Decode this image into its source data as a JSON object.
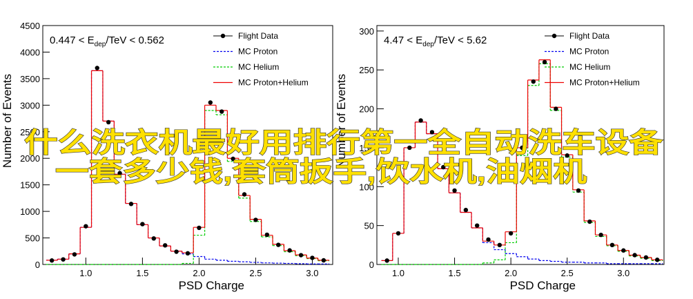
{
  "chart_data": [
    {
      "type": "histogram",
      "title_parts": [
        "0.447 < E",
        "dep",
        "/TeV < 0.562"
      ],
      "x_label": "PSD Charge",
      "y_label": "Number of Events",
      "xlim": [
        0.62,
        3.18
      ],
      "ylim": [
        0,
        4500
      ],
      "xticks": [
        {
          "value": 1,
          "label": "1.0"
        },
        1.5,
        {
          "value": 2,
          "label": "2.0"
        },
        2.5,
        {
          "value": 3,
          "label": "3.0"
        }
      ],
      "yticks": [
        0,
        500,
        1000,
        1500,
        2000,
        2500,
        3000,
        3500,
        4000,
        4500
      ],
      "bins": [
        0.65,
        0.75,
        0.85,
        0.95,
        1.05,
        1.15,
        1.25,
        1.35,
        1.45,
        1.55,
        1.65,
        1.75,
        1.85,
        1.95,
        2.05,
        2.15,
        2.25,
        2.35,
        2.45,
        2.55,
        2.65,
        2.75,
        2.85,
        2.95,
        3.05,
        3.15
      ],
      "series": [
        {
          "name": "Flight Data",
          "color": "#000000",
          "style": "markers",
          "values": [
            75,
            95,
            190,
            720,
            3700,
            2680,
            1720,
            1140,
            760,
            490,
            360,
            240,
            210,
            690,
            3050,
            2880,
            1990,
            1320,
            840,
            560,
            370,
            265,
            175,
            125,
            78
          ]
        },
        {
          "name": "MC Proton",
          "color": "#0000ee",
          "style": "dashed",
          "values": [
            80,
            100,
            200,
            700,
            3650,
            2700,
            1700,
            1150,
            750,
            500,
            350,
            250,
            200,
            150,
            100,
            80,
            60,
            50,
            40,
            30,
            25,
            20,
            15,
            10,
            10
          ]
        },
        {
          "name": "MC Helium",
          "color": "#00cc00",
          "style": "dashed",
          "values": [
            0,
            0,
            0,
            0,
            0,
            0,
            0,
            0,
            0,
            0,
            0,
            0,
            20,
            550,
            2900,
            2820,
            1940,
            1250,
            810,
            520,
            355,
            240,
            165,
            110,
            70
          ]
        },
        {
          "name": "MC Proton+Helium",
          "color": "#ee0000",
          "style": "solid",
          "values": [
            80,
            100,
            200,
            700,
            3650,
            2700,
            1700,
            1150,
            750,
            500,
            350,
            250,
            220,
            700,
            3000,
            2900,
            2000,
            1300,
            850,
            550,
            380,
            260,
            180,
            120,
            80
          ]
        }
      ]
    },
    {
      "type": "histogram",
      "title_parts": [
        "4.47 < E",
        "dep",
        "/TeV < 5.62"
      ],
      "x_label": "PSD Charge",
      "y_label": "Number of Events",
      "xlim": [
        0.81,
        3.36
      ],
      "ylim": [
        0,
        307
      ],
      "xticks": [
        {
          "value": 1,
          "label": "1.0"
        },
        1.5,
        {
          "value": 2,
          "label": "2.0"
        },
        2.5,
        {
          "value": 3,
          "label": "3.0"
        }
      ],
      "yticks": [
        0,
        50,
        100,
        150,
        200,
        250,
        300
      ],
      "bins": [
        0.85,
        0.95,
        1.05,
        1.15,
        1.25,
        1.35,
        1.45,
        1.55,
        1.65,
        1.75,
        1.85,
        1.95,
        2.05,
        2.15,
        2.25,
        2.35,
        2.45,
        2.55,
        2.65,
        2.75,
        2.85,
        2.95,
        3.05,
        3.15,
        3.25,
        3.35
      ],
      "series": [
        {
          "name": "Flight Data",
          "color": "#000000",
          "style": "markers",
          "values": [
            5,
            40,
            150,
            185,
            170,
            125,
            95,
            70,
            50,
            32,
            25,
            40,
            150,
            235,
            260,
            200,
            140,
            95,
            55,
            38,
            25,
            18,
            12,
            9,
            6
          ]
        },
        {
          "name": "MC Proton",
          "color": "#0000ee",
          "style": "dashed",
          "values": [
            5,
            40,
            150,
            183,
            168,
            123,
            92,
            67,
            47,
            28,
            19,
            14,
            10,
            7,
            5,
            4,
            3,
            3,
            2,
            2,
            1,
            1,
            1,
            1,
            1
          ]
        },
        {
          "name": "MC Helium",
          "color": "#00cc00",
          "style": "dashed",
          "values": [
            0,
            0,
            0,
            0,
            0,
            0,
            0,
            0,
            0,
            2,
            6,
            28,
            140,
            230,
            258,
            198,
            138,
            93,
            54,
            36,
            24,
            17,
            11,
            8,
            5
          ]
        },
        {
          "name": "MC Proton+Helium",
          "color": "#ee0000",
          "style": "solid",
          "values": [
            5,
            40,
            150,
            183,
            168,
            123,
            92,
            67,
            47,
            30,
            25,
            42,
            150,
            237,
            263,
            202,
            141,
            96,
            56,
            38,
            25,
            18,
            12,
            9,
            6
          ]
        }
      ]
    }
  ],
  "overlay_text": [
    "什么洗衣机最好用排行第一全自动洗车设备",
    "一套多少钱,套筒扳手,饮水机,油烟机"
  ]
}
